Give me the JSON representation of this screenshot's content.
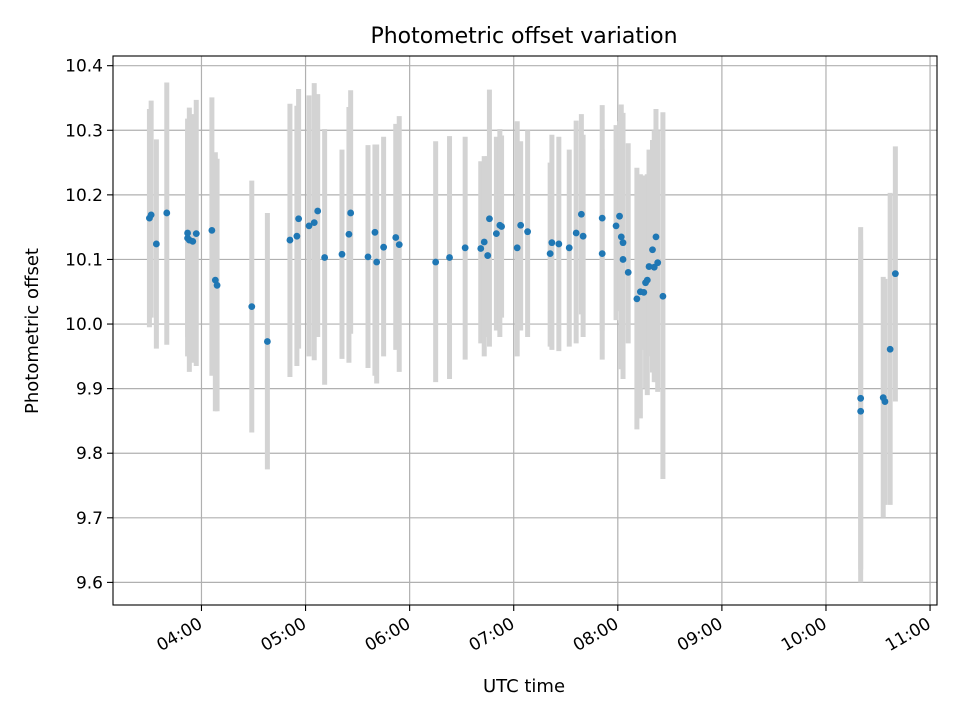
{
  "chart_data": {
    "type": "scatter",
    "title": "Photometric offset variation",
    "xlabel": "UTC time",
    "ylabel": "Photometric offset",
    "xlim": [
      "03:09",
      "11:04"
    ],
    "ylim": [
      9.565,
      10.415
    ],
    "x_ticks": [
      "04:00",
      "05:00",
      "06:00",
      "07:00",
      "08:00",
      "09:00",
      "10:00",
      "11:00"
    ],
    "y_ticks": [
      "9.6",
      "9.7",
      "9.8",
      "9.9",
      "10.0",
      "10.1",
      "10.2",
      "10.3",
      "10.4"
    ],
    "grid": true,
    "colors": {
      "points": "#1f77b4",
      "error_bars": "#d3d3d3",
      "grid": "#b0b0b0"
    },
    "series": [
      {
        "x": [
          "03:30",
          "03:31",
          "03:34",
          "03:40",
          "03:52",
          "03:52",
          "03:53",
          "03:55",
          "03:57",
          "04:06",
          "04:08",
          "04:09",
          "04:29",
          "04:38",
          "04:51",
          "04:55",
          "04:56",
          "05:02",
          "05:05",
          "05:07",
          "05:11",
          "05:21",
          "05:25",
          "05:26",
          "05:36",
          "05:40",
          "05:41",
          "05:45",
          "05:52",
          "05:54",
          "06:15",
          "06:23",
          "06:32",
          "06:41",
          "06:43",
          "06:45",
          "06:46",
          "06:50",
          "06:52",
          "06:53",
          "07:02",
          "07:04",
          "07:08",
          "07:21",
          "07:22",
          "07:26",
          "07:32",
          "07:36",
          "07:39",
          "07:40",
          "07:51",
          "07:51",
          "07:59",
          "08:01",
          "08:02",
          "08:03",
          "08:03",
          "08:06",
          "08:11",
          "08:13",
          "08:15",
          "08:16",
          "08:17",
          "08:18",
          "08:20",
          "08:21",
          "08:22",
          "08:23",
          "08:26",
          "10:20",
          "10:20",
          "10:33",
          "10:34",
          "10:37",
          "10:40"
        ],
        "y": [
          10.164,
          10.169,
          10.124,
          10.172,
          10.141,
          10.133,
          10.13,
          10.128,
          10.14,
          10.145,
          10.068,
          10.06,
          10.027,
          9.973,
          10.13,
          10.136,
          10.163,
          10.152,
          10.157,
          10.175,
          10.103,
          10.108,
          10.139,
          10.172,
          10.104,
          10.142,
          10.096,
          10.119,
          10.134,
          10.123,
          10.096,
          10.103,
          10.118,
          10.117,
          10.127,
          10.106,
          10.163,
          10.14,
          10.153,
          10.151,
          10.118,
          10.153,
          10.143,
          10.109,
          10.126,
          10.124,
          10.118,
          10.141,
          10.17,
          10.136,
          10.164,
          10.109,
          10.152,
          10.167,
          10.135,
          10.126,
          10.1,
          10.08,
          10.039,
          10.05,
          10.049,
          10.064,
          10.068,
          10.089,
          10.115,
          10.088,
          10.135,
          10.095,
          10.043,
          9.885,
          9.865,
          9.886,
          9.88,
          9.961,
          10.078
        ],
        "y_low": [
          9.995,
          10.01,
          9.962,
          9.968,
          9.98,
          9.95,
          9.926,
          9.94,
          9.935,
          9.92,
          9.865,
          9.865,
          9.832,
          9.775,
          9.918,
          9.935,
          9.962,
          9.95,
          9.944,
          9.98,
          9.906,
          9.946,
          9.94,
          9.985,
          9.932,
          9.92,
          9.908,
          9.95,
          9.96,
          9.926,
          9.91,
          9.915,
          9.945,
          9.97,
          9.95,
          9.98,
          9.965,
          9.99,
          9.98,
          10.01,
          9.95,
          9.99,
          9.98,
          9.965,
          9.96,
          9.958,
          9.965,
          9.97,
          10.015,
          9.98,
          9.99,
          9.945,
          10.006,
          10.02,
          9.93,
          9.915,
          9.96,
          9.97,
          9.837,
          9.854,
          9.96,
          9.9,
          9.89,
          9.95,
          9.925,
          9.91,
          9.91,
          9.895,
          9.76,
          9.62,
          9.6,
          9.7,
          9.72,
          9.72,
          9.88
        ],
        "y_high": [
          10.333,
          10.346,
          10.286,
          10.374,
          10.318,
          10.3,
          10.335,
          10.325,
          10.347,
          10.351,
          10.266,
          10.256,
          10.222,
          10.172,
          10.341,
          10.338,
          10.364,
          10.354,
          10.373,
          10.356,
          10.302,
          10.27,
          10.336,
          10.362,
          10.277,
          10.278,
          10.278,
          10.29,
          10.31,
          10.322,
          10.283,
          10.291,
          10.29,
          10.252,
          10.26,
          10.26,
          10.363,
          10.29,
          10.302,
          10.292,
          10.314,
          10.283,
          10.3,
          10.25,
          10.293,
          10.29,
          10.27,
          10.315,
          10.325,
          10.293,
          10.339,
          10.27,
          10.308,
          10.314,
          10.34,
          10.327,
          10.24,
          10.28,
          10.242,
          10.232,
          10.23,
          10.228,
          10.232,
          10.27,
          10.285,
          10.3,
          10.333,
          10.3,
          10.328,
          10.15,
          10.13,
          10.073,
          10.07,
          10.203,
          10.275
        ]
      }
    ]
  }
}
